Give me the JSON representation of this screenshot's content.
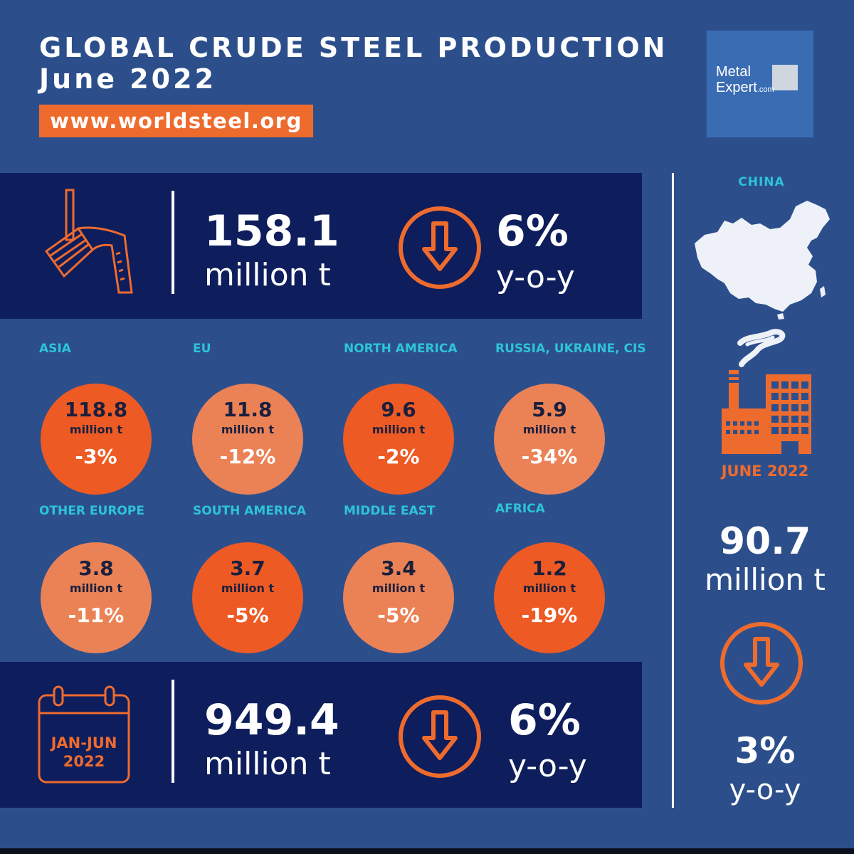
{
  "header": {
    "title_line1": "GLOBAL CRUDE STEEL PRODUCTION",
    "title_line2": "June 2022",
    "url": "www.worldsteel.org"
  },
  "logo": {
    "line1": "Metal",
    "line2": "Expert",
    "suffix": ".com"
  },
  "world_month": {
    "value": "158.1",
    "unit": "million t",
    "change": "6%",
    "change_label": "y-o-y"
  },
  "world_ytd": {
    "period": "JAN-JUN",
    "year": "2022",
    "value": "949.4",
    "unit": "million t",
    "change": "6%",
    "change_label": "y-o-y"
  },
  "regions": [
    {
      "name": "ASIA",
      "value": "118.8",
      "unit": "million t",
      "change": "-3%",
      "shade": "dark"
    },
    {
      "name": "EU",
      "value": "11.8",
      "unit": "million t",
      "change": "-12%",
      "shade": "light"
    },
    {
      "name": "NORTH AMERICA",
      "value": "9.6",
      "unit": "million t",
      "change": "-2%",
      "shade": "dark"
    },
    {
      "name": "RUSSIA, UKRAINE, CIS",
      "value": "5.9",
      "unit": "million t",
      "change": "-34%",
      "shade": "light"
    },
    {
      "name": "OTHER EUROPE",
      "value": "3.8",
      "unit": "million t",
      "change": "-11%",
      "shade": "light"
    },
    {
      "name": "SOUTH AMERICA",
      "value": "3.7",
      "unit": "million t",
      "change": "-5%",
      "shade": "dark"
    },
    {
      "name": "MIDDLE EAST",
      "value": "3.4",
      "unit": "million t",
      "change": "-5%",
      "shade": "light"
    },
    {
      "name": "AFRICA",
      "value": "1.2",
      "unit": "million t",
      "change": "-19%",
      "shade": "dark"
    }
  ],
  "china": {
    "label": "CHINA",
    "date": "JUNE 2022",
    "value": "90.7",
    "unit": "million t",
    "change": "3%",
    "change_label": "y-o-y"
  },
  "colors": {
    "background": "#2c4f8c",
    "panel": "#0e1d5c",
    "accent": "#ee6b2e",
    "bubble_dark": "#ee5a24",
    "bubble_light": "#eb8256",
    "label": "#2ec4d6"
  },
  "icons": [
    "ladle-pour-icon",
    "down-arrow-circle-icon",
    "calendar-icon",
    "china-map-icon",
    "factory-icon"
  ]
}
